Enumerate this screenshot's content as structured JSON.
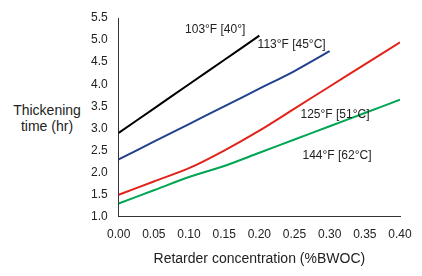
{
  "chart_data": {
    "type": "line",
    "x_label": "Retarder concentration (%BWOC)",
    "y_label": "Thickening time (hr)",
    "x": [
      0,
      0.05,
      0.1,
      0.15,
      0.2,
      0.25,
      0.3,
      0.35,
      0.4
    ],
    "series": [
      {
        "name": "103°F [40°]",
        "color": "#000000",
        "values": [
          2.9,
          3.45,
          4.0,
          4.55,
          5.1,
          null,
          null,
          null,
          null
        ]
      },
      {
        "name": "113°F [45°C]",
        "color": "#23408e",
        "values": [
          2.3,
          2.7,
          3.1,
          3.5,
          3.9,
          4.3,
          4.75,
          null,
          null
        ]
      },
      {
        "name": "125°F [51°C]",
        "color": "#e2231a",
        "values": [
          1.5,
          1.8,
          2.1,
          2.5,
          2.95,
          3.45,
          3.95,
          4.45,
          4.95
        ]
      },
      {
        "name": "144°F [62°C]",
        "color": "#00a651",
        "values": [
          1.3,
          1.6,
          1.9,
          2.15,
          2.45,
          2.75,
          3.05,
          3.35,
          3.65
        ]
      }
    ],
    "xlim": [
      0,
      0.4
    ],
    "xticks": [
      {
        "value": 0,
        "label": "0.00"
      },
      0.05,
      {
        "value": 0.1,
        "label": "0.10"
      },
      0.15,
      {
        "value": 0.2,
        "label": "0.20"
      },
      0.25,
      {
        "value": 0.3,
        "label": "0.30"
      },
      0.35,
      {
        "value": 0.4,
        "label": "0.40"
      }
    ],
    "ylim": [
      1,
      5.5
    ],
    "yticks": [
      {
        "value": 1,
        "label": "1.0"
      },
      1.5,
      {
        "value": 2,
        "label": "2.0"
      },
      2.5,
      {
        "value": 3,
        "label": "3.0"
      },
      3.5,
      {
        "value": 4,
        "label": "4.0"
      },
      4.5,
      {
        "value": 5,
        "label": "5.0"
      },
      5.5
    ],
    "grid": false
  }
}
